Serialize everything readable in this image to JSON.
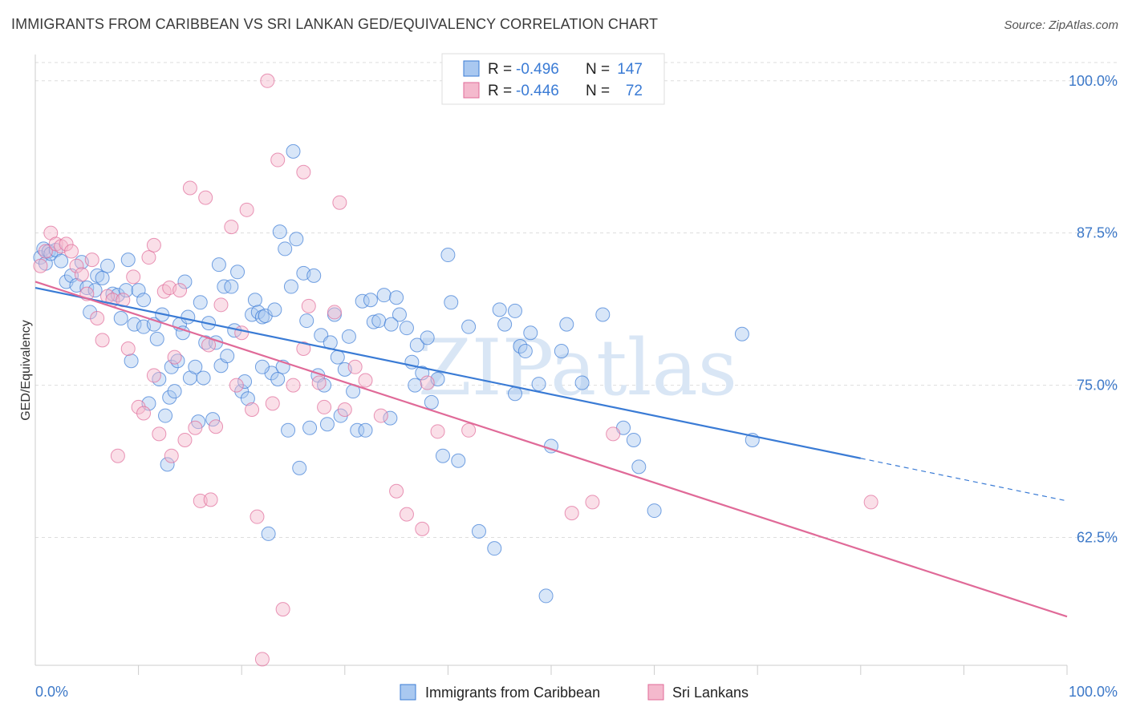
{
  "title": "IMMIGRANTS FROM CARIBBEAN VS SRI LANKAN GED/EQUIVALENCY CORRELATION CHART",
  "source": "Source: ZipAtlas.com",
  "colors": {
    "blue": "#3a7bd5",
    "pink": "#e06a98",
    "blue_fill": "#a9c8f0",
    "pink_fill": "#f4b9cd",
    "grid": "#dddddd"
  },
  "chart_data": {
    "type": "scatter",
    "title": "IMMIGRANTS FROM CARIBBEAN VS SRI LANKAN GED/EQUIVALENCY CORRELATION CHART",
    "xlabel": "",
    "ylabel": "GED/Equivalency",
    "xlim": [
      0,
      100
    ],
    "ylim": [
      52,
      101.5
    ],
    "x_tick_labels": [
      "0.0%",
      "100.0%"
    ],
    "y_ticks": [
      62.5,
      75.0,
      87.5,
      100.0
    ],
    "y_tick_labels": [
      "62.5%",
      "75.0%",
      "87.5%",
      "100.0%"
    ],
    "grid": true,
    "legend_position": "top-center",
    "stats": [
      {
        "r_label": "R =",
        "r_value": "-0.496",
        "n_label": "N =",
        "n_value": "147"
      },
      {
        "r_label": "R =",
        "r_value": "-0.446",
        "n_label": "N =",
        "n_value": "72"
      }
    ],
    "series": [
      {
        "name": "Immigrants from Caribbean",
        "color": "#3a7bd5",
        "trend": {
          "x": [
            0,
            80
          ],
          "y": [
            83.0,
            69.0
          ],
          "dashed_to": [
            100,
            65.5
          ]
        },
        "points": [
          [
            0.5,
            85.5
          ],
          [
            0.8,
            86.2
          ],
          [
            1.0,
            85.0
          ],
          [
            1.3,
            86.0
          ],
          [
            1.5,
            85.8
          ],
          [
            2.0,
            86.1
          ],
          [
            2.5,
            85.2
          ],
          [
            3.0,
            83.5
          ],
          [
            3.5,
            84.0
          ],
          [
            4.0,
            83.2
          ],
          [
            4.5,
            85.1
          ],
          [
            5.0,
            83.0
          ],
          [
            5.3,
            81.0
          ],
          [
            5.8,
            82.8
          ],
          [
            6.0,
            84.0
          ],
          [
            6.5,
            83.8
          ],
          [
            7.0,
            84.8
          ],
          [
            7.5,
            82.5
          ],
          [
            8.0,
            82.4
          ],
          [
            8.3,
            80.5
          ],
          [
            8.8,
            82.8
          ],
          [
            9.0,
            85.3
          ],
          [
            9.3,
            77.0
          ],
          [
            9.6,
            80.0
          ],
          [
            10.0,
            82.8
          ],
          [
            10.5,
            79.8
          ],
          [
            10.5,
            82.0
          ],
          [
            11.0,
            73.5
          ],
          [
            11.5,
            80.0
          ],
          [
            11.8,
            78.8
          ],
          [
            12.0,
            75.5
          ],
          [
            12.3,
            80.8
          ],
          [
            12.6,
            72.5
          ],
          [
            13.0,
            74.0
          ],
          [
            13.2,
            76.5
          ],
          [
            13.5,
            74.5
          ],
          [
            13.8,
            77.0
          ],
          [
            14.0,
            80.0
          ],
          [
            14.3,
            79.3
          ],
          [
            14.5,
            83.5
          ],
          [
            14.8,
            80.6
          ],
          [
            15.0,
            75.6
          ],
          [
            15.5,
            76.5
          ],
          [
            15.8,
            72.0
          ],
          [
            16.0,
            81.8
          ],
          [
            16.3,
            75.6
          ],
          [
            16.5,
            78.5
          ],
          [
            16.8,
            80.1
          ],
          [
            17.2,
            72.2
          ],
          [
            17.5,
            78.5
          ],
          [
            17.8,
            84.9
          ],
          [
            18.0,
            76.6
          ],
          [
            18.3,
            83.1
          ],
          [
            18.6,
            77.4
          ],
          [
            19.0,
            83.1
          ],
          [
            19.3,
            79.5
          ],
          [
            19.6,
            84.3
          ],
          [
            20.0,
            74.5
          ],
          [
            20.3,
            75.3
          ],
          [
            20.6,
            73.9
          ],
          [
            21.0,
            80.8
          ],
          [
            21.3,
            82.0
          ],
          [
            21.6,
            81.0
          ],
          [
            22.0,
            80.6
          ],
          [
            22.3,
            80.7
          ],
          [
            22.6,
            62.8
          ],
          [
            22.9,
            76.0
          ],
          [
            23.2,
            81.2
          ],
          [
            23.5,
            75.5
          ],
          [
            23.7,
            87.6
          ],
          [
            24.0,
            76.5
          ],
          [
            24.2,
            86.2
          ],
          [
            24.5,
            71.3
          ],
          [
            24.8,
            83.1
          ],
          [
            25.0,
            94.2
          ],
          [
            25.3,
            87.0
          ],
          [
            25.6,
            68.2
          ],
          [
            26.0,
            84.2
          ],
          [
            26.3,
            80.3
          ],
          [
            26.6,
            71.5
          ],
          [
            27.0,
            84.0
          ],
          [
            27.4,
            75.8
          ],
          [
            27.7,
            79.1
          ],
          [
            28.0,
            75.0
          ],
          [
            28.3,
            71.8
          ],
          [
            28.6,
            78.5
          ],
          [
            29.0,
            80.8
          ],
          [
            29.3,
            77.3
          ],
          [
            29.6,
            72.5
          ],
          [
            30.0,
            76.3
          ],
          [
            30.4,
            79.0
          ],
          [
            30.8,
            74.5
          ],
          [
            31.2,
            71.3
          ],
          [
            31.7,
            81.9
          ],
          [
            32.0,
            71.3
          ],
          [
            32.5,
            82.0
          ],
          [
            32.8,
            80.2
          ],
          [
            33.3,
            80.3
          ],
          [
            33.8,
            82.4
          ],
          [
            34.4,
            72.3
          ],
          [
            35.0,
            82.2
          ],
          [
            35.3,
            80.8
          ],
          [
            36.0,
            79.7
          ],
          [
            36.5,
            76.9
          ],
          [
            36.8,
            75.0
          ],
          [
            37.0,
            78.3
          ],
          [
            37.5,
            76.0
          ],
          [
            38.0,
            78.9
          ],
          [
            38.4,
            73.6
          ],
          [
            39.0,
            75.5
          ],
          [
            39.5,
            69.2
          ],
          [
            40.0,
            85.7
          ],
          [
            40.3,
            81.8
          ],
          [
            41.0,
            68.8
          ],
          [
            42.0,
            79.8
          ],
          [
            43.0,
            63.0
          ],
          [
            44.5,
            61.6
          ],
          [
            45.0,
            81.2
          ],
          [
            45.5,
            80.0
          ],
          [
            46.5,
            81.1
          ],
          [
            46.5,
            74.3
          ],
          [
            47.0,
            78.2
          ],
          [
            47.5,
            77.8
          ],
          [
            48.0,
            79.3
          ],
          [
            48.8,
            75.1
          ],
          [
            49.5,
            57.7
          ],
          [
            50.0,
            70.0
          ],
          [
            51.0,
            77.8
          ],
          [
            51.5,
            80.0
          ],
          [
            53.0,
            75.2
          ],
          [
            55.0,
            80.8
          ],
          [
            57.0,
            71.5
          ],
          [
            58.0,
            70.5
          ],
          [
            58.5,
            68.3
          ],
          [
            60.0,
            64.7
          ],
          [
            68.5,
            79.2
          ],
          [
            69.5,
            70.5
          ],
          [
            34.5,
            80.0
          ],
          [
            22.0,
            76.5
          ],
          [
            12.8,
            68.5
          ]
        ]
      },
      {
        "name": "Sri Lankans",
        "color": "#e06a98",
        "trend": {
          "x": [
            0,
            100
          ],
          "y": [
            83.5,
            56.0
          ]
        },
        "points": [
          [
            0.5,
            84.8
          ],
          [
            1.0,
            86.0
          ],
          [
            1.5,
            87.5
          ],
          [
            2.0,
            86.6
          ],
          [
            2.5,
            86.4
          ],
          [
            3.0,
            86.6
          ],
          [
            3.5,
            86.0
          ],
          [
            4.0,
            84.8
          ],
          [
            4.5,
            84.1
          ],
          [
            5.0,
            82.5
          ],
          [
            5.5,
            85.3
          ],
          [
            6.0,
            80.5
          ],
          [
            6.5,
            78.7
          ],
          [
            7.0,
            82.3
          ],
          [
            7.5,
            82.0
          ],
          [
            8.0,
            69.2
          ],
          [
            8.5,
            82.0
          ],
          [
            9.0,
            78.0
          ],
          [
            9.5,
            83.9
          ],
          [
            10.0,
            73.2
          ],
          [
            10.5,
            72.7
          ],
          [
            11.0,
            85.5
          ],
          [
            11.5,
            75.8
          ],
          [
            12.0,
            71.0
          ],
          [
            12.5,
            82.7
          ],
          [
            13.0,
            83.0
          ],
          [
            13.2,
            69.2
          ],
          [
            13.5,
            77.3
          ],
          [
            14.0,
            82.8
          ],
          [
            14.5,
            70.5
          ],
          [
            15.0,
            91.2
          ],
          [
            15.5,
            71.5
          ],
          [
            16.0,
            65.5
          ],
          [
            16.5,
            90.4
          ],
          [
            16.8,
            78.3
          ],
          [
            17.0,
            65.6
          ],
          [
            17.5,
            71.6
          ],
          [
            18.0,
            81.6
          ],
          [
            19.0,
            88.0
          ],
          [
            19.5,
            75.0
          ],
          [
            20.0,
            79.3
          ],
          [
            20.5,
            89.4
          ],
          [
            21.0,
            73.0
          ],
          [
            21.5,
            64.2
          ],
          [
            22.0,
            52.5
          ],
          [
            22.5,
            100.0
          ],
          [
            23.0,
            73.5
          ],
          [
            23.5,
            93.5
          ],
          [
            24.0,
            56.6
          ],
          [
            25.0,
            75.0
          ],
          [
            26.0,
            78.0
          ],
          [
            26.5,
            81.5
          ],
          [
            27.5,
            75.2
          ],
          [
            28.0,
            73.2
          ],
          [
            29.0,
            81.0
          ],
          [
            29.5,
            90.0
          ],
          [
            30.0,
            73.0
          ],
          [
            31.0,
            76.5
          ],
          [
            32.0,
            75.4
          ],
          [
            33.5,
            72.5
          ],
          [
            35.0,
            66.3
          ],
          [
            36.0,
            64.4
          ],
          [
            37.5,
            63.2
          ],
          [
            38.0,
            75.2
          ],
          [
            39.0,
            71.2
          ],
          [
            42.0,
            71.3
          ],
          [
            52.0,
            64.5
          ],
          [
            54.0,
            65.4
          ],
          [
            56.0,
            71.0
          ],
          [
            81.0,
            65.4
          ],
          [
            26.0,
            92.5
          ],
          [
            11.5,
            86.5
          ]
        ]
      }
    ]
  },
  "legend": {
    "items": [
      {
        "label": "Immigrants from Caribbean"
      },
      {
        "label": "Sri Lankans"
      }
    ]
  },
  "watermark": "ZIPatlas"
}
